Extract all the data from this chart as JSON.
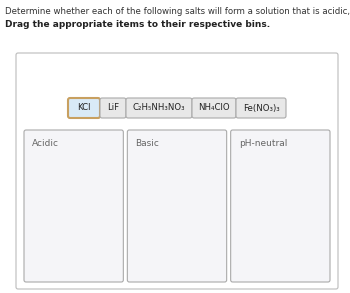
{
  "title_line1": "Determine whether each of the following salts will form a solution that is acidic, basic, or pH-neutral.",
  "title_line2": "Drag the appropriate items to their respective bins.",
  "background_color": "#ffffff",
  "chip_items": [
    {
      "label": "KCl",
      "highlight": true
    },
    {
      "label": "LiF",
      "highlight": false
    },
    {
      "label": "C₂H₅NH₃NO₃",
      "highlight": false
    },
    {
      "label": "NH₄ClO",
      "highlight": false
    },
    {
      "label": "Fe(NO₃)₃",
      "highlight": false
    }
  ],
  "bins": [
    {
      "label": "Acidic"
    },
    {
      "label": "Basic"
    },
    {
      "label": "pH-neutral"
    }
  ],
  "title_fontsize": 6.2,
  "title2_fontsize": 6.5,
  "chip_fontsize": 6.2,
  "bin_fontsize": 6.5,
  "chip_highlight_facecolor": "#d9eaf7",
  "chip_highlight_edgecolor": "#c8a060",
  "chip_normal_facecolor": "#e8e8e8",
  "chip_normal_edgecolor": "#aaaaaa",
  "outer_box_facecolor": "#ffffff",
  "outer_box_edgecolor": "#bbbbbb",
  "bin_facecolor": "#f5f5f8",
  "bin_edgecolor": "#aaaaaa",
  "bin_label_color": "#666666",
  "title1_color": "#333333",
  "title2_color": "#222222"
}
